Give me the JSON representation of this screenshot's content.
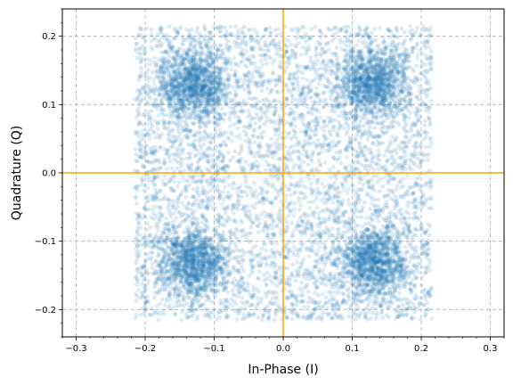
{
  "chart_data": {
    "type": "scatter",
    "title": "",
    "xlabel": "In-Phase (I)",
    "ylabel": "Quadrature (Q)",
    "xlim": [
      -0.32,
      0.32
    ],
    "ylim": [
      -0.24,
      0.24
    ],
    "x_ticks": [
      -0.3,
      -0.2,
      -0.1,
      0.0,
      0.1,
      0.2,
      0.3
    ],
    "y_ticks": [
      -0.2,
      -0.1,
      0.0,
      0.1,
      0.2
    ],
    "x_tick_labels": [
      "−0.3",
      "−0.2",
      "−0.1",
      "0.0",
      "0.1",
      "0.2",
      "0.3"
    ],
    "y_tick_labels": [
      "−0.2",
      "−0.1",
      "0.0",
      "0.1",
      "0.2"
    ],
    "grid": true,
    "grid_style": "dashed",
    "minor_ticks": true,
    "reference_lines": [
      {
        "orientation": "vertical",
        "at": 0.0,
        "color": "#ffa500"
      },
      {
        "orientation": "horizontal",
        "at": 0.0,
        "color": "#ffa500"
      }
    ],
    "series": [
      {
        "description": "QPSK constellation with noise; dense clusters at the four symbol points plus a uniform spread",
        "color": "#1f77b4",
        "alpha": 0.15,
        "cluster_centers": [
          [
            -0.13,
            0.13
          ],
          [
            0.13,
            0.13
          ],
          [
            -0.13,
            -0.13
          ],
          [
            0.13,
            -0.13
          ]
        ],
        "cluster_std": 0.025,
        "spread_range": [
          -0.215,
          0.215
        ],
        "cluster_points": 4600,
        "spread_points": 5200
      }
    ]
  }
}
